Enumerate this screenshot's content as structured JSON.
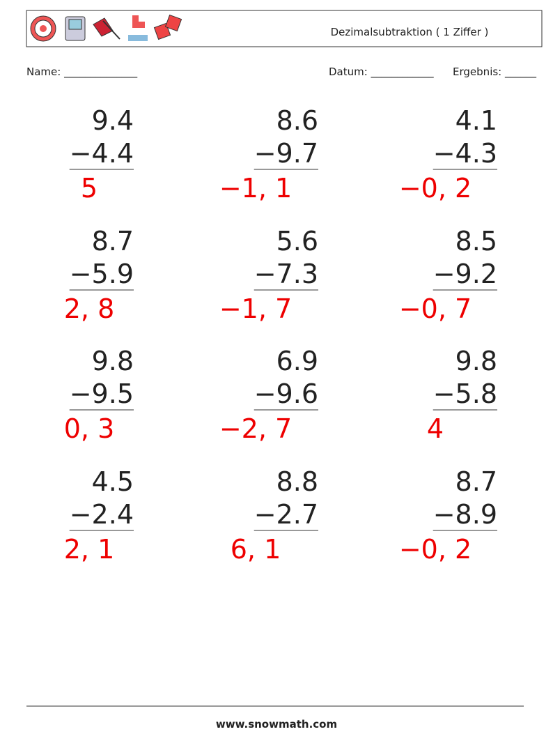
{
  "header": {
    "title": "Dezimalsubtraktion ( 1 Ziffer )"
  },
  "fields": {
    "name": "Name: ______________",
    "date": "Datum: ____________",
    "score": "Ergebnis: ______"
  },
  "problems": [
    {
      "top": "9.4",
      "bottom": "−4.4",
      "answer": "5"
    },
    {
      "top": "8.6",
      "bottom": "−9.7",
      "answer": "−1, 1"
    },
    {
      "top": "4.1",
      "bottom": "−4.3",
      "answer": "−0, 2"
    },
    {
      "top": "8.7",
      "bottom": "−5.9",
      "answer": "2, 8"
    },
    {
      "top": "5.6",
      "bottom": "−7.3",
      "answer": "−1, 7"
    },
    {
      "top": "8.5",
      "bottom": "−9.2",
      "answer": "−0, 7"
    },
    {
      "top": "9.8",
      "bottom": "−9.5",
      "answer": "0, 3"
    },
    {
      "top": "6.9",
      "bottom": "−9.6",
      "answer": "−2, 7"
    },
    {
      "top": "9.8",
      "bottom": "−5.8",
      "answer": "4"
    },
    {
      "top": "4.5",
      "bottom": "−2.4",
      "answer": "2, 1"
    },
    {
      "top": "8.8",
      "bottom": "−2.7",
      "answer": "6, 1"
    },
    {
      "top": "8.7",
      "bottom": "−8.9",
      "answer": "−0, 2"
    }
  ],
  "footer": {
    "site": "www.snowmath.com"
  }
}
